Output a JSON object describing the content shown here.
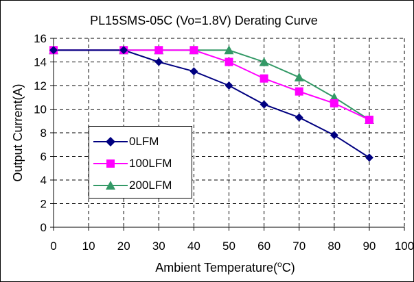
{
  "chart_data": {
    "type": "line",
    "title": "PL15SMS-05C (Vo=1.8V) Derating Curve",
    "xlabel_prefix": "Ambient Temperature(",
    "xlabel_sup": "o",
    "xlabel_suffix": "C)",
    "ylabel": "Output Current(A)",
    "xlim": [
      0,
      100
    ],
    "ylim": [
      0,
      16
    ],
    "xticks": [
      "0",
      "10",
      "20",
      "30",
      "40",
      "50",
      "60",
      "70",
      "80",
      "90",
      "100"
    ],
    "yticks": [
      "0",
      "2",
      "4",
      "6",
      "8",
      "10",
      "12",
      "14",
      "16"
    ],
    "grid": "major dashed",
    "legend_position": "left-middle",
    "series": [
      {
        "name": "0LFM",
        "color": "#000080",
        "marker": "diamond",
        "x": [
          0,
          20,
          30,
          40,
          50,
          60,
          70,
          80,
          90
        ],
        "y": [
          15,
          15,
          14,
          13.2,
          12,
          10.4,
          9.3,
          7.8,
          5.9
        ]
      },
      {
        "name": "100LFM",
        "color": "#ff00ff",
        "marker": "square",
        "x": [
          0,
          20,
          30,
          40,
          50,
          60,
          70,
          80,
          90
        ],
        "y": [
          15,
          15,
          15,
          15,
          14,
          12.6,
          11.5,
          10.5,
          9.1
        ]
      },
      {
        "name": "200LFM",
        "color": "#339966",
        "marker": "triangle",
        "x": [
          0,
          20,
          30,
          40,
          50,
          60,
          70,
          80,
          90
        ],
        "y": [
          15,
          15,
          15,
          15,
          15,
          14,
          12.7,
          11,
          9.1
        ]
      }
    ]
  }
}
